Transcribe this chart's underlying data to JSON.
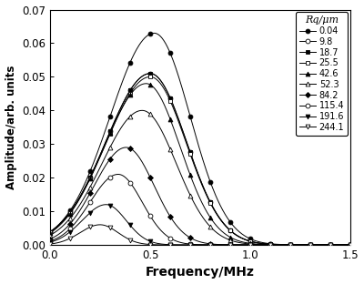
{
  "xlabel": "Frequency/MHz",
  "ylabel": "Amplitude/arb. units",
  "xlim": [
    0.0,
    1.5
  ],
  "ylim": [
    0.0,
    0.07
  ],
  "xticks": [
    0.0,
    0.5,
    1.0,
    1.5
  ],
  "yticks": [
    0.0,
    0.01,
    0.02,
    0.03,
    0.04,
    0.05,
    0.06,
    0.07
  ],
  "legend_title": "Rq/μm",
  "series": [
    {
      "label": "0.04",
      "peak": 0.063,
      "peak_freq": 0.52,
      "sigma_l": 0.22,
      "sigma_r": 0.18,
      "marker": "o",
      "filled": true,
      "ms": 3.5
    },
    {
      "label": "9.8",
      "peak": 0.051,
      "peak_freq": 0.5,
      "sigma_l": 0.22,
      "sigma_r": 0.18,
      "marker": "o",
      "filled": false,
      "ms": 3.5
    },
    {
      "label": "18.7",
      "peak": 0.051,
      "peak_freq": 0.5,
      "sigma_l": 0.22,
      "sigma_r": 0.18,
      "marker": "s",
      "filled": true,
      "ms": 3.0
    },
    {
      "label": "25.5",
      "peak": 0.05,
      "peak_freq": 0.5,
      "sigma_l": 0.22,
      "sigma_r": 0.18,
      "marker": "s",
      "filled": false,
      "ms": 3.0
    },
    {
      "label": "42.6",
      "peak": 0.048,
      "peak_freq": 0.48,
      "sigma_l": 0.21,
      "sigma_r": 0.17,
      "marker": "^",
      "filled": true,
      "ms": 3.5
    },
    {
      "label": "52.3",
      "peak": 0.04,
      "peak_freq": 0.46,
      "sigma_l": 0.2,
      "sigma_r": 0.17,
      "marker": "^",
      "filled": false,
      "ms": 3.5
    },
    {
      "label": "84.2",
      "peak": 0.029,
      "peak_freq": 0.38,
      "sigma_l": 0.16,
      "sigma_r": 0.14,
      "marker": "D",
      "filled": true,
      "ms": 3.0
    },
    {
      "label": "115.4",
      "peak": 0.021,
      "peak_freq": 0.34,
      "sigma_l": 0.14,
      "sigma_r": 0.12,
      "marker": "o",
      "filled": false,
      "ms": 3.5
    },
    {
      "label": "191.6",
      "peak": 0.012,
      "peak_freq": 0.28,
      "sigma_l": 0.12,
      "sigma_r": 0.1,
      "marker": "v",
      "filled": true,
      "ms": 3.5
    },
    {
      "label": "244.1",
      "peak": 0.006,
      "peak_freq": 0.25,
      "sigma_l": 0.1,
      "sigma_r": 0.09,
      "marker": "v",
      "filled": false,
      "ms": 3.5
    }
  ]
}
